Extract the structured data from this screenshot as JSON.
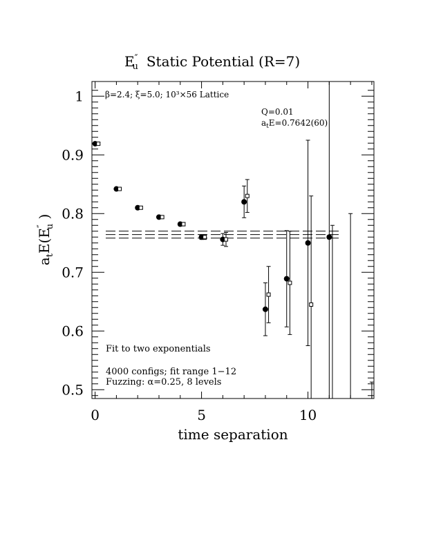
{
  "chart_data": {
    "type": "scatter",
    "title": {
      "base": "E",
      "prime": "″",
      "sub": "u",
      "rest": "Static Potential (R=7)"
    },
    "xlabel": "time separation",
    "ylabel": {
      "pre": "a",
      "pre_sub": "t",
      "mid": "E(E",
      "prime": "″",
      "sub": "u",
      "post": " )"
    },
    "xlim": [
      -0.15,
      13.1
    ],
    "ylim": [
      0.485,
      1.025
    ],
    "x_ticks": [
      0,
      5,
      10
    ],
    "y_ticks": [
      0.5,
      0.6,
      0.7,
      0.8,
      0.9,
      1
    ],
    "y_tick_labels": [
      "0.5",
      "0.6",
      "0.7",
      "0.8",
      "0.9",
      "1"
    ],
    "x_tick_labels": [
      "0",
      "5",
      "10"
    ],
    "grid": false,
    "annotations": {
      "lattice": "β=2.4; ξ=5.0; 10³×56 Lattice",
      "q": "Q=0.01",
      "energy": {
        "pre": "a",
        "sub": "t",
        "post": "E=0.7642(60)"
      },
      "fit_desc": "Fit to two exponentials",
      "configs": "4000 configs; fit range 1−12",
      "fuzzing": "Fuzzing: α=0.25, 8 levels"
    },
    "fit": {
      "value": 0.7642,
      "error": 0.006,
      "x_range": [
        0.5,
        11.5
      ]
    },
    "series": [
      {
        "marker": "filled-circle",
        "points": [
          {
            "x": 0,
            "y": 0.919,
            "err": 0.002
          },
          {
            "x": 1,
            "y": 0.842,
            "err": 0.002
          },
          {
            "x": 2,
            "y": 0.81,
            "err": 0.002
          },
          {
            "x": 3,
            "y": 0.794,
            "err": 0.002
          },
          {
            "x": 4,
            "y": 0.782,
            "err": 0.003
          },
          {
            "x": 5,
            "y": 0.76,
            "err": 0.004
          },
          {
            "x": 6,
            "y": 0.756,
            "err": 0.01
          },
          {
            "x": 7,
            "y": 0.82,
            "err": 0.027
          },
          {
            "x": 8,
            "y": 0.637,
            "err": 0.045
          },
          {
            "x": 9,
            "y": 0.689,
            "err": 0.082
          },
          {
            "x": 10,
            "y": 0.75,
            "err": 0.175
          },
          {
            "x": 11,
            "y": 0.76,
            "err": 0.6
          }
        ]
      },
      {
        "marker": "open-square",
        "points": [
          {
            "x": 0.15,
            "y": 0.919,
            "err": 0.002
          },
          {
            "x": 1.15,
            "y": 0.842,
            "err": 0.002
          },
          {
            "x": 2.15,
            "y": 0.81,
            "err": 0.002
          },
          {
            "x": 3.15,
            "y": 0.794,
            "err": 0.002
          },
          {
            "x": 4.15,
            "y": 0.782,
            "err": 0.003
          },
          {
            "x": 5.15,
            "y": 0.76,
            "err": 0.004
          },
          {
            "x": 6.15,
            "y": 0.756,
            "err": 0.012
          },
          {
            "x": 7.15,
            "y": 0.83,
            "err": 0.028
          },
          {
            "x": 8.15,
            "y": 0.662,
            "err": 0.048
          },
          {
            "x": 9.15,
            "y": 0.682,
            "err": 0.088
          },
          {
            "x": 10.15,
            "y": 0.645,
            "err": 0.185
          },
          {
            "x": 11.15,
            "y": 0.48,
            "err": 0.3
          },
          {
            "x": 12.0,
            "y": 0.48,
            "err": 0.32
          },
          {
            "x": 13.0,
            "y": 0.48,
            "err": 0.033
          }
        ]
      }
    ]
  }
}
